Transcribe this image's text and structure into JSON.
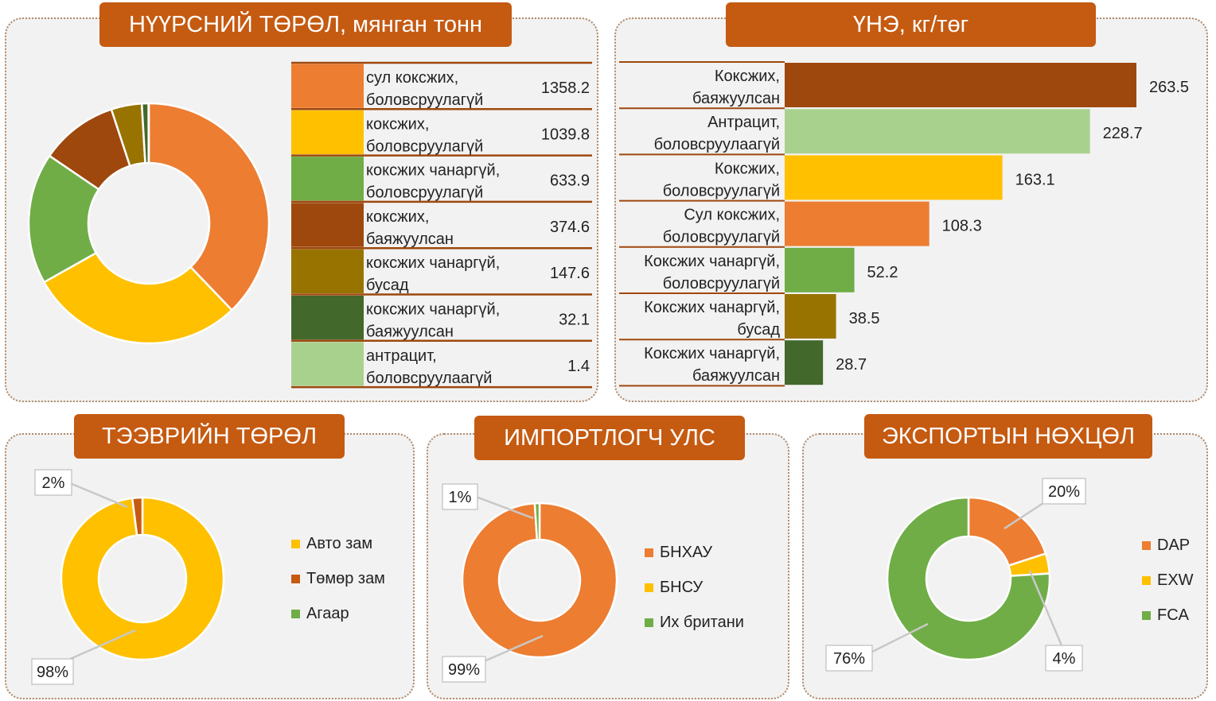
{
  "colors": {
    "accent": "#c55a11",
    "orange": "#ed7d31",
    "gold": "#ffc000",
    "green": "#70ad47",
    "brown": "#9e480e",
    "olive": "#997300",
    "dark_green": "#43682b",
    "light_green": "#a9d18e"
  },
  "panels": {
    "coal": {
      "title": "НҮҮРСНИЙ ТӨРӨЛ, мянган тонн"
    },
    "price": {
      "title": "ҮНЭ, кг/төг"
    },
    "transport": {
      "title": "ТЭЭВРИЙН ТӨРӨЛ"
    },
    "importer": {
      "title": "ИМПОРТЛОГЧ УЛС"
    },
    "export": {
      "title": "ЭКСПОРТЫН НӨХЦӨЛ"
    }
  },
  "chart_data": [
    {
      "id": "coal",
      "type": "pie",
      "donut": true,
      "title": "НҮҮРСНИЙ ТӨРӨЛ, мянган тонн",
      "categories": [
        [
          "сул коксжих,",
          "боловсруулагүй"
        ],
        [
          "коксжих,",
          "боловсруулагүй"
        ],
        [
          "коксжих чанаргүй,",
          "боловсруулагүй"
        ],
        [
          "коксжих,",
          "баяжуулсан"
        ],
        [
          "коксжих чанаргүй,",
          "бусад"
        ],
        [
          "коксжих чанаргүй,",
          "баяжуулсан"
        ],
        [
          "антрацит,",
          "боловсруулаагүй"
        ]
      ],
      "values": [
        1358.2,
        1039.8,
        633.9,
        374.6,
        147.6,
        32.1,
        1.4
      ],
      "value_labels": [
        "1358.2",
        "1039.8",
        "633.9",
        "374.6",
        "147.6",
        "32.1",
        "1.4"
      ],
      "colors": [
        "#ed7d31",
        "#ffc000",
        "#70ad47",
        "#9e480e",
        "#997300",
        "#43682b",
        "#a9d18e"
      ],
      "legend": "right-table"
    },
    {
      "id": "price",
      "type": "bar",
      "orientation": "horizontal",
      "title": "ҮНЭ, кг/төг",
      "categories": [
        [
          "Коксжих,",
          "баяжуулсан"
        ],
        [
          "Антрацит,",
          "боловсруулаагүй"
        ],
        [
          "Коксжих,",
          "боловсруулагүй"
        ],
        [
          "Сул коксжих,",
          "боловсруулагүй"
        ],
        [
          "Коксжих чанаргүй,",
          "боловсруулагүй"
        ],
        [
          "Коксжих чанаргүй,",
          "бусад"
        ],
        [
          "Коксжих чанаргүй,",
          "баяжуулсан"
        ]
      ],
      "values": [
        263.5,
        228.7,
        163.1,
        108.3,
        52.2,
        38.5,
        28.7
      ],
      "value_labels": [
        "263.5",
        "228.7",
        "163.1",
        "108.3",
        "52.2",
        "38.5",
        "28.7"
      ],
      "colors": [
        "#9e480e",
        "#a9d18e",
        "#ffc000",
        "#ed7d31",
        "#70ad47",
        "#997300",
        "#43682b"
      ],
      "xlim": [
        0,
        263.5
      ],
      "grid": false
    },
    {
      "id": "transport",
      "type": "pie",
      "donut": true,
      "title": "ТЭЭВРИЙН ТӨРӨЛ",
      "categories": [
        "Авто зам",
        "Төмөр зам",
        "Агаар"
      ],
      "values": [
        98,
        2,
        0
      ],
      "value_labels": [
        "98%",
        "2%",
        ""
      ],
      "colors": [
        "#ffc000",
        "#c55a11",
        "#70ad47"
      ],
      "legend": "right"
    },
    {
      "id": "importer",
      "type": "pie",
      "donut": true,
      "title": "ИМПОРТЛОГЧ УЛС",
      "categories": [
        "БНХАУ",
        "БНСУ",
        "Их британи"
      ],
      "values": [
        99,
        0,
        1
      ],
      "value_labels": [
        "99%",
        "",
        "1%"
      ],
      "colors": [
        "#ed7d31",
        "#ffc000",
        "#70ad47"
      ],
      "legend": "right"
    },
    {
      "id": "export",
      "type": "pie",
      "donut": true,
      "title": "ЭКСПОРТЫН НӨХЦӨЛ",
      "categories": [
        "DAP",
        "EXW",
        "FCA"
      ],
      "values": [
        20,
        4,
        76
      ],
      "value_labels": [
        "20%",
        "4%",
        "76%"
      ],
      "colors": [
        "#ed7d31",
        "#ffc000",
        "#70ad47"
      ],
      "legend": "right"
    }
  ]
}
